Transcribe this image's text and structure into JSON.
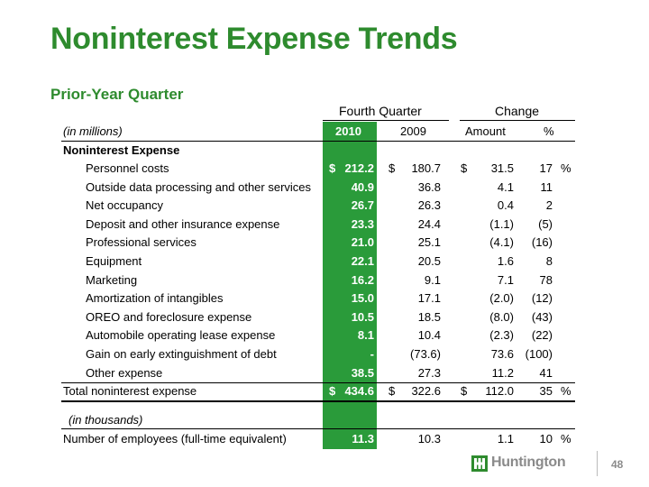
{
  "title": "Noninterest Expense Trends",
  "subtitle": "Prior-Year Quarter",
  "header": {
    "fourth_quarter": "Fourth Quarter",
    "change": "Change",
    "units": "(in millions)",
    "y2010": "2010",
    "y2009": "2009",
    "amount": "Amount",
    "pct": "%"
  },
  "section_label": "Noninterest Expense",
  "rows": [
    {
      "label": "Personnel costs",
      "d10": "$",
      "v10": "212.2",
      "d09": "$",
      "v09": "180.7",
      "damt": "$",
      "amt": "31.5",
      "pct": "17",
      "pctsign": "%"
    },
    {
      "label": "Outside data processing and other services",
      "v10": "40.9",
      "v09": "36.8",
      "amt": "4.1",
      "pct": "11"
    },
    {
      "label": "Net occupancy",
      "v10": "26.7",
      "v09": "26.3",
      "amt": "0.4",
      "pct": "2"
    },
    {
      "label": "Deposit and other insurance expense",
      "v10": "23.3",
      "v09": "24.4",
      "amt": "(1.1)",
      "pct": "(5)"
    },
    {
      "label": "Professional services",
      "v10": "21.0",
      "v09": "25.1",
      "amt": "(4.1)",
      "pct": "(16)"
    },
    {
      "label": "Equipment",
      "v10": "22.1",
      "v09": "20.5",
      "amt": "1.6",
      "pct": "8"
    },
    {
      "label": "Marketing",
      "v10": "16.2",
      "v09": "9.1",
      "amt": "7.1",
      "pct": "78"
    },
    {
      "label": "Amortization of intangibles",
      "v10": "15.0",
      "v09": "17.1",
      "amt": "(2.0)",
      "pct": "(12)"
    },
    {
      "label": "OREO and foreclosure expense",
      "v10": "10.5",
      "v09": "18.5",
      "amt": "(8.0)",
      "pct": "(43)"
    },
    {
      "label": "Automobile operating lease expense",
      "v10": "8.1",
      "v09": "10.4",
      "amt": "(2.3)",
      "pct": "(22)"
    },
    {
      "label": "Gain on early extinguishment of debt",
      "v10": "-",
      "v09": "(73.6)",
      "amt": "73.6",
      "pct": "(100)"
    },
    {
      "label": "Other expense",
      "v10": "38.5",
      "v09": "27.3",
      "amt": "11.2",
      "pct": "41"
    }
  ],
  "total": {
    "label": "Total noninterest expense",
    "d10": "$",
    "v10": "434.6",
    "d09": "$",
    "v09": "322.6",
    "damt": "$",
    "amt": "112.0",
    "pct": "35",
    "pctsign": "%"
  },
  "thousands_label": "(in thousands)",
  "employees": {
    "label": "Number of employees (full-time equivalent)",
    "v10": "11.3",
    "v09": "10.3",
    "amt": "1.1",
    "pct": "10",
    "pctsign": "%"
  },
  "logo_text": "Huntington",
  "page_number": "48",
  "colors": {
    "brand_green": "#2e8b2e",
    "column_green": "#2a9b3a"
  }
}
